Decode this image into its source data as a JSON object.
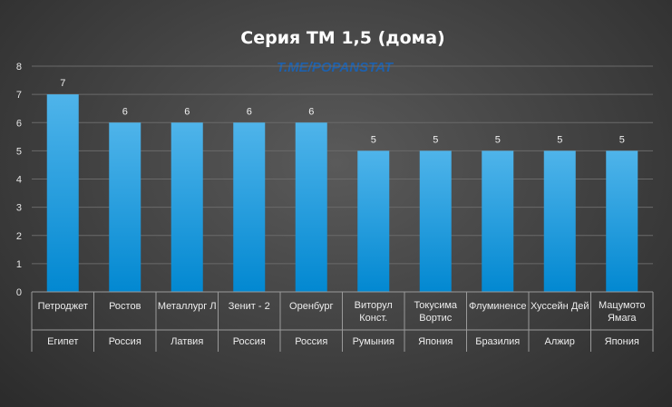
{
  "chart_data": {
    "type": "bar",
    "title": "Серия ТМ 1,5 (дома)",
    "watermark": "T.ME/POPANSTAT",
    "categories": [
      {
        "name": [
          "Петроджет"
        ],
        "country": "Египет"
      },
      {
        "name": [
          "Ростов"
        ],
        "country": "Россия"
      },
      {
        "name": [
          "Металлург Л"
        ],
        "country": "Латвия"
      },
      {
        "name": [
          "Зенит - 2"
        ],
        "country": "Россия"
      },
      {
        "name": [
          "Оренбург"
        ],
        "country": "Россия"
      },
      {
        "name": [
          "Виторул",
          "Конст."
        ],
        "country": "Румыния"
      },
      {
        "name": [
          "Токусима",
          "Вортис"
        ],
        "country": "Япония"
      },
      {
        "name": [
          "Флуминенсе"
        ],
        "country": "Бразилия"
      },
      {
        "name": [
          "Хуссейн Дей"
        ],
        "country": "Алжир"
      },
      {
        "name": [
          "Мацумото",
          "Ямага"
        ],
        "country": "Япония"
      }
    ],
    "values": [
      7,
      6,
      6,
      6,
      6,
      5,
      5,
      5,
      5,
      5
    ],
    "ylim": [
      0,
      8
    ],
    "yticks": [
      0,
      1,
      2,
      3,
      4,
      5,
      6,
      7,
      8
    ],
    "grid": true,
    "data_labels": true,
    "colors": {
      "bar_top": "#4fb4ea",
      "bar_bottom": "#0288d1",
      "grid": "#6a6a6a",
      "axis": "#9a9a9a",
      "text": "#e6e6e6"
    }
  }
}
